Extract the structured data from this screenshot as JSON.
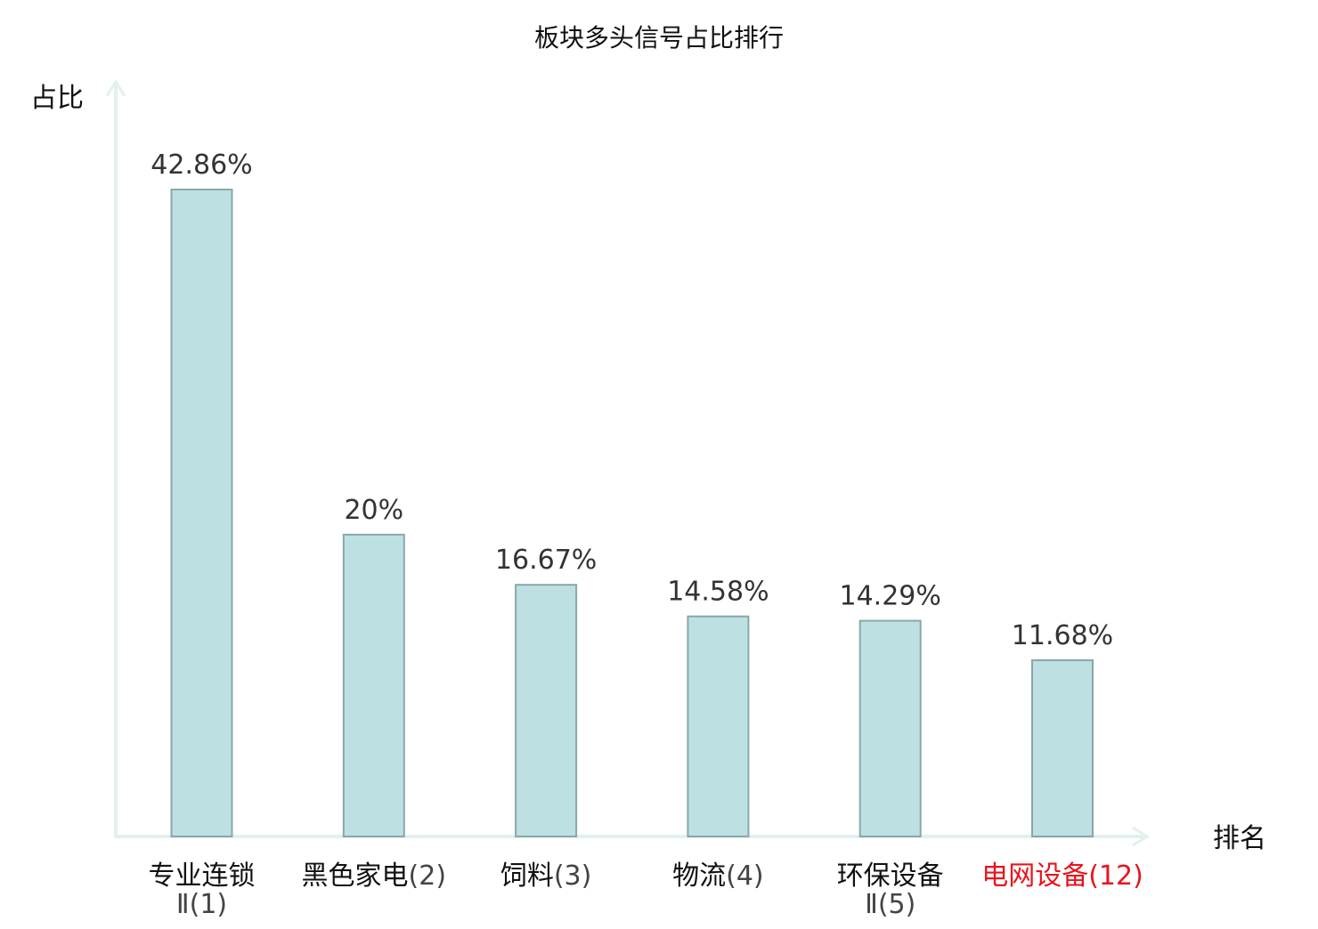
{
  "chart_data": {
    "type": "bar",
    "title": "板块多头信号占比排行",
    "ylabel": "占比",
    "xlabel": "排名",
    "categories": [
      "专业连锁Ⅱ(1)",
      "黑色家电(2)",
      "饲料(3)",
      "物流(4)",
      "环保设备Ⅱ(5)",
      "电网设备(12)"
    ],
    "tick_labels": [
      {
        "name": "专业连锁",
        "rank": "Ⅱ(1)",
        "wrap": true,
        "highlight": false
      },
      {
        "name": "黑色家电",
        "rank": "(2)",
        "wrap": false,
        "highlight": false
      },
      {
        "name": "饲料",
        "rank": "(3)",
        "wrap": false,
        "highlight": false
      },
      {
        "name": "物流",
        "rank": "(4)",
        "wrap": false,
        "highlight": false
      },
      {
        "name": "环保设备",
        "rank": "Ⅱ(5)",
        "wrap": true,
        "highlight": false
      },
      {
        "name": "电网设备",
        "rank": "(12)",
        "wrap": false,
        "highlight": true
      }
    ],
    "values": [
      42.86,
      20,
      16.67,
      14.58,
      14.29,
      11.68
    ],
    "value_labels": [
      "42.86%",
      "20%",
      "16.67%",
      "14.58%",
      "14.29%",
      "11.68%"
    ],
    "ylim": [
      0,
      50
    ],
    "grid": false,
    "legend": "none",
    "colors": {
      "bar_fill": "#bde0e3",
      "bar_stroke": "#8aa7a9",
      "axis": "#e0f1ee",
      "label": "#333333",
      "tick_name": "#111111",
      "tick_rank": "#444444",
      "highlight": "#e8141c"
    }
  }
}
